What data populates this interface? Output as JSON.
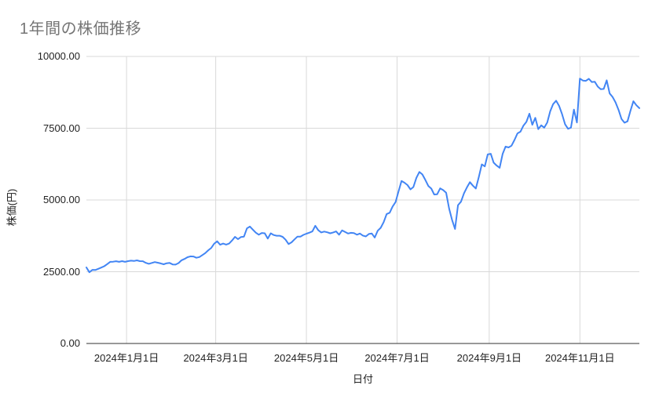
{
  "title": "1年間の株価推移",
  "colors": {
    "background": "#ffffff",
    "title_text": "#757575",
    "axis_text": "#222222",
    "gridline": "#d9d9d9",
    "axis_line": "#333333",
    "line": "#4285f4"
  },
  "chart_data": {
    "type": "line",
    "title": "1年間の株価推移",
    "xlabel": "日付",
    "ylabel": "株価(円)",
    "ylim": [
      0,
      10000
    ],
    "grid": true,
    "legend": "none",
    "line_color": "#4285f4",
    "y_ticks": [
      {
        "label": "0.00",
        "value": 0
      },
      {
        "label": "2500.00",
        "value": 2500
      },
      {
        "label": "5000.00",
        "value": 5000
      },
      {
        "label": "7500.00",
        "value": 7500
      },
      {
        "label": "10000.00",
        "value": 10000
      }
    ],
    "x_ticks": [
      {
        "label": "2024年1月1日",
        "day": 27
      },
      {
        "label": "2024年3月1日",
        "day": 87
      },
      {
        "label": "2024年5月1日",
        "day": 148
      },
      {
        "label": "2024年7月1日",
        "day": 209
      },
      {
        "label": "2024年9月1日",
        "day": 271
      },
      {
        "label": "2024年11月1日",
        "day": 332
      }
    ],
    "x_start_date": "2023-12-05",
    "x_range_days": 372,
    "interval_days": 2,
    "values": [
      2650,
      2480,
      2565,
      2560,
      2600,
      2645,
      2690,
      2765,
      2845,
      2850,
      2865,
      2845,
      2870,
      2845,
      2870,
      2885,
      2875,
      2895,
      2870,
      2865,
      2810,
      2775,
      2805,
      2835,
      2815,
      2790,
      2760,
      2795,
      2805,
      2755,
      2750,
      2800,
      2900,
      2945,
      3005,
      3035,
      3030,
      2985,
      3010,
      3080,
      3150,
      3250,
      3330,
      3480,
      3560,
      3440,
      3480,
      3445,
      3480,
      3590,
      3715,
      3635,
      3710,
      3725,
      4010,
      4075,
      3965,
      3860,
      3790,
      3850,
      3840,
      3655,
      3840,
      3780,
      3755,
      3755,
      3715,
      3615,
      3465,
      3525,
      3625,
      3725,
      3725,
      3785,
      3825,
      3860,
      3905,
      4100,
      3945,
      3870,
      3900,
      3875,
      3840,
      3870,
      3905,
      3790,
      3940,
      3885,
      3830,
      3855,
      3845,
      3790,
      3830,
      3760,
      3730,
      3815,
      3830,
      3690,
      3930,
      4030,
      4230,
      4510,
      4555,
      4770,
      4925,
      5300,
      5660,
      5600,
      5520,
      5370,
      5450,
      5770,
      5975,
      5890,
      5700,
      5490,
      5395,
      5190,
      5200,
      5405,
      5345,
      5250,
      4700,
      4310,
      3990,
      4820,
      4940,
      5230,
      5440,
      5620,
      5500,
      5400,
      5800,
      6240,
      6170,
      6590,
      6610,
      6300,
      6200,
      6120,
      6600,
      6860,
      6830,
      6890,
      7090,
      7320,
      7380,
      7590,
      7720,
      8005,
      7620,
      7860,
      7470,
      7600,
      7520,
      7700,
      8090,
      8340,
      8460,
      8280,
      7990,
      7640,
      7480,
      7520,
      8150,
      7700,
      9230,
      9160,
      9150,
      9220,
      9110,
      9120,
      8950,
      8860,
      8870,
      9170,
      8710,
      8590,
      8400,
      8140,
      7820,
      7690,
      7740,
      8100,
      8440,
      8300,
      8200
    ]
  }
}
